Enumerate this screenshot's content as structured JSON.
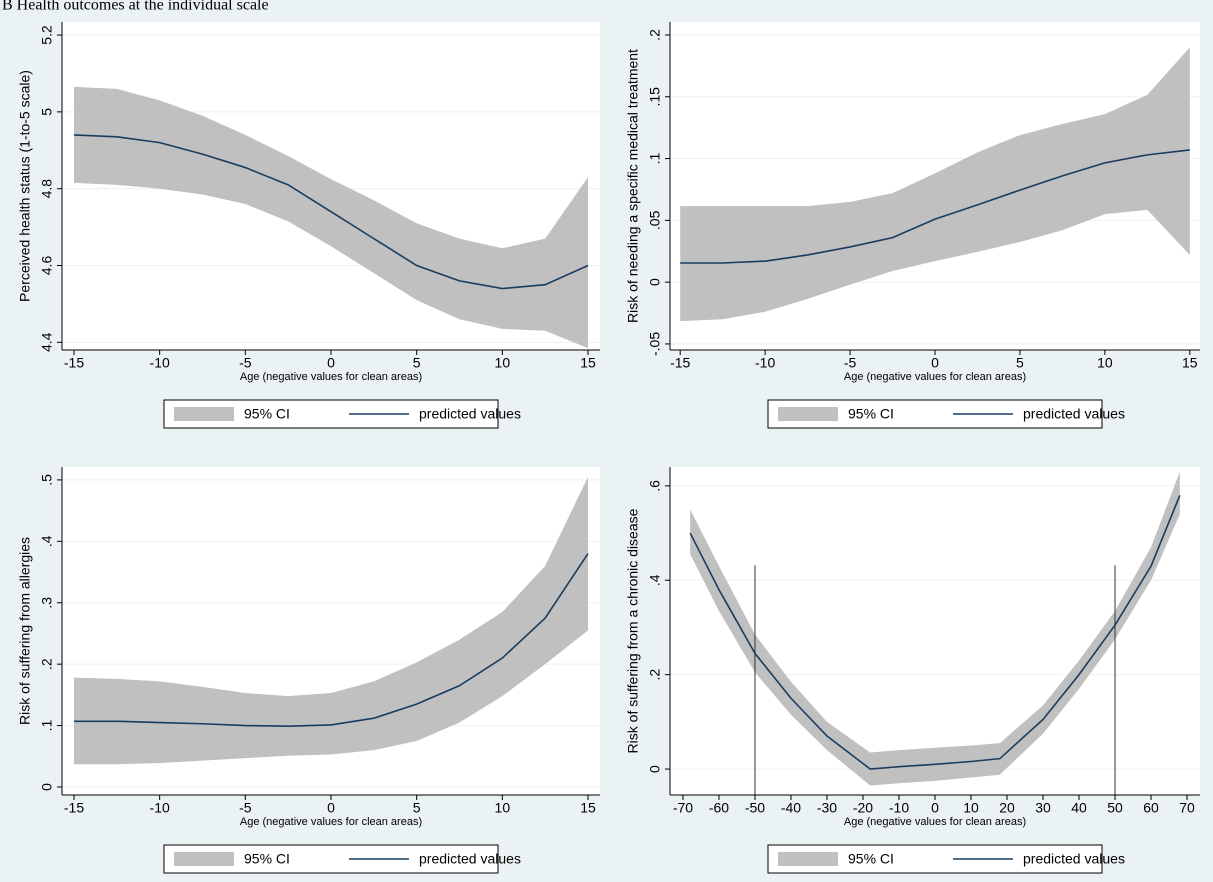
{
  "title": "B  Health outcomes at the individual scale",
  "chart_data": [
    {
      "type": "line",
      "x_label": "Age (negative values for clean areas)",
      "y_label": "Perceived health status (1-to-5 scale)",
      "x": [
        -15,
        -12.5,
        -10,
        -7.5,
        -5,
        -2.5,
        0,
        2.5,
        5,
        7.5,
        10,
        12.5,
        15
      ],
      "series": [
        {
          "name": "95% CI",
          "kind": "band",
          "color": "#c0c0c0",
          "lower": [
            4.815,
            4.81,
            4.8,
            4.785,
            4.76,
            4.715,
            4.65,
            4.58,
            4.51,
            4.46,
            4.435,
            4.43,
            4.385
          ],
          "upper": [
            5.065,
            5.06,
            5.03,
            4.99,
            4.94,
            4.885,
            4.825,
            4.77,
            4.71,
            4.67,
            4.645,
            4.67,
            4.83
          ]
        },
        {
          "name": "predicted values",
          "kind": "line",
          "color": "#1a3c5e",
          "values": [
            4.94,
            4.935,
            4.92,
            4.89,
            4.855,
            4.81,
            4.74,
            4.67,
            4.6,
            4.56,
            4.54,
            4.55,
            4.6
          ]
        }
      ],
      "xlim": [
        -15.7,
        15.7
      ],
      "ylim": [
        4.38,
        5.234
      ],
      "xticks": [
        -15,
        -10,
        -5,
        0,
        5,
        10,
        15
      ],
      "yticks": [
        4.4,
        4.6,
        4.8,
        5,
        5.2
      ],
      "grid": true,
      "legend": "bottom"
    },
    {
      "type": "line",
      "x_label": "Age (negative values for clean areas)",
      "y_label": "Risk of needing a specific medical treatment",
      "x": [
        -15,
        -12.5,
        -10,
        -7.5,
        -5,
        -2.5,
        0,
        2.5,
        5,
        7.5,
        10,
        12.5,
        15
      ],
      "series": [
        {
          "name": "95% CI",
          "kind": "band",
          "color": "#c0c0c0",
          "lower": [
            -0.0315,
            -0.03,
            -0.024,
            -0.0135,
            -0.002,
            0.009,
            0.017,
            0.0245,
            0.0325,
            0.042,
            0.055,
            0.0585,
            0.022
          ],
          "upper": [
            0.0615,
            0.0615,
            0.0615,
            0.0615,
            0.065,
            0.072,
            0.088,
            0.105,
            0.119,
            0.128,
            0.136,
            0.1515,
            0.19
          ]
        },
        {
          "name": "predicted values",
          "kind": "line",
          "color": "#1a3c5e",
          "values": [
            0.0155,
            0.0155,
            0.017,
            0.022,
            0.0285,
            0.036,
            0.051,
            0.0625,
            0.0745,
            0.086,
            0.0965,
            0.103,
            0.107
          ]
        }
      ],
      "xlim": [
        -15.6,
        15.6
      ],
      "ylim": [
        -0.0549,
        0.2105
      ],
      "xticks": [
        -15,
        -10,
        -5,
        0,
        5,
        10,
        15
      ],
      "yticks": [
        {
          "value": -0.05,
          "label": "-.05"
        },
        0,
        {
          "value": 0.05,
          "label": ".05"
        },
        {
          "value": 0.1,
          "label": ".1"
        },
        {
          "value": 0.15,
          "label": ".15"
        },
        {
          "value": 0.2,
          "label": ".2"
        }
      ],
      "grid": true,
      "legend": "bottom"
    },
    {
      "type": "line",
      "x_label": "Age (negative values for clean areas)",
      "y_label": "Risk of suffering from allergies",
      "x": [
        -15,
        -12.5,
        -10,
        -7.5,
        -5,
        -2.5,
        0,
        2.5,
        5,
        7.5,
        10,
        12.5,
        15
      ],
      "series": [
        {
          "name": "95% CI",
          "kind": "band",
          "color": "#c0c0c0",
          "lower": [
            0.037,
            0.037,
            0.039,
            0.043,
            0.047,
            0.051,
            0.053,
            0.06,
            0.075,
            0.105,
            0.148,
            0.2,
            0.255
          ],
          "upper": [
            0.178,
            0.176,
            0.172,
            0.163,
            0.153,
            0.148,
            0.153,
            0.172,
            0.203,
            0.24,
            0.285,
            0.36,
            0.505
          ]
        },
        {
          "name": "predicted values",
          "kind": "line",
          "color": "#1a3c5e",
          "values": [
            0.107,
            0.107,
            0.105,
            0.103,
            0.1,
            0.099,
            0.101,
            0.112,
            0.135,
            0.165,
            0.21,
            0.275,
            0.38
          ]
        }
      ],
      "xlim": [
        -15.7,
        15.7
      ],
      "ylim": [
        -0.013,
        0.521
      ],
      "xticks": [
        -15,
        -10,
        -5,
        0,
        5,
        10,
        15
      ],
      "yticks": [
        0,
        {
          "value": 0.1,
          "label": ".1"
        },
        {
          "value": 0.2,
          "label": ".2"
        },
        {
          "value": 0.3,
          "label": ".3"
        },
        {
          "value": 0.4,
          "label": ".4"
        },
        {
          "value": 0.5,
          "label": ".5"
        }
      ],
      "grid": true,
      "legend": "bottom"
    },
    {
      "type": "line",
      "x_label": "Age (negative values for clean areas)",
      "y_label": "Risk of suffering from a chronic disease",
      "x": [
        -68,
        -60,
        -50,
        -40,
        -30,
        -18,
        -10,
        0,
        10,
        18,
        30,
        40,
        50,
        60,
        68
      ],
      "series": [
        {
          "name": "95% CI",
          "kind": "band",
          "color": "#c0c0c0",
          "lower": [
            0.455,
            0.335,
            0.205,
            0.115,
            0.04,
            -0.035,
            -0.03,
            -0.025,
            -0.018,
            -0.012,
            0.075,
            0.17,
            0.275,
            0.4,
            0.54
          ],
          "upper": [
            0.55,
            0.43,
            0.285,
            0.185,
            0.1,
            0.035,
            0.04,
            0.045,
            0.05,
            0.055,
            0.135,
            0.23,
            0.335,
            0.47,
            0.63
          ]
        },
        {
          "name": "predicted values",
          "kind": "line",
          "color": "#1a3c5e",
          "values": [
            0.5,
            0.38,
            0.245,
            0.15,
            0.07,
            0,
            0.005,
            0.01,
            0.016,
            0.022,
            0.105,
            0.2,
            0.305,
            0.43,
            0.58
          ]
        }
      ],
      "xlim": [
        -73.6,
        73.6
      ],
      "ylim": [
        -0.055,
        0.64
      ],
      "xticks": [
        -70,
        -60,
        -50,
        -40,
        -30,
        -20,
        -10,
        0,
        10,
        20,
        30,
        40,
        50,
        60,
        70
      ],
      "yticks": [
        0,
        {
          "value": 0.2,
          "label": ".2"
        },
        {
          "value": 0.4,
          "label": ".4"
        },
        {
          "value": 0.6,
          "label": ".6"
        }
      ],
      "vlines": [
        -50,
        50
      ],
      "grid": true,
      "legend": "bottom"
    }
  ]
}
